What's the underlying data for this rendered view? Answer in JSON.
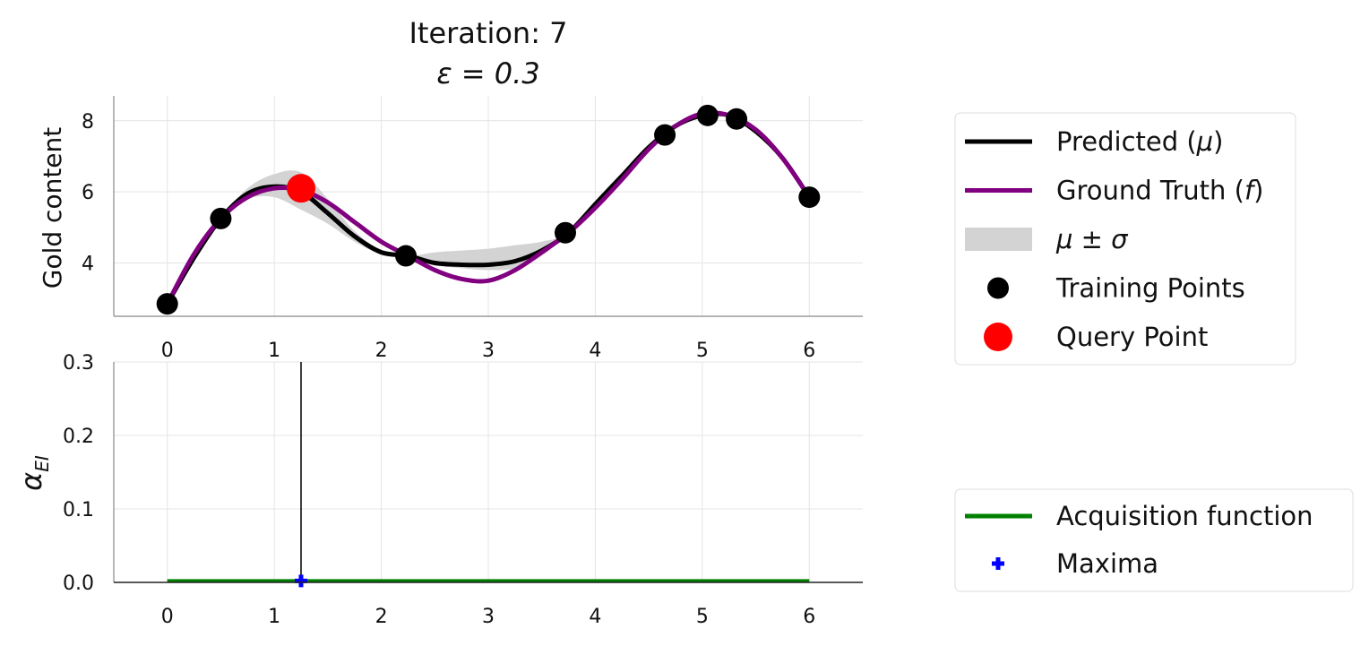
{
  "title": {
    "line1": "Iteration: 7",
    "line2": "ε = 0.3"
  },
  "chart_data": [
    {
      "type": "line",
      "ylabel": "Gold content",
      "xlim": [
        -0.5,
        6.5
      ],
      "ylim": [
        2.5,
        8.7
      ],
      "xticks": [
        "0",
        "1",
        "2",
        "3",
        "4",
        "5",
        "6"
      ],
      "yticks": [
        "4",
        "6",
        "8"
      ],
      "grid": true,
      "series": [
        {
          "name": "Predicted (μ)",
          "color": "#000000",
          "x": [
            0,
            0.25,
            0.5,
            0.75,
            1.0,
            1.25,
            1.5,
            1.75,
            2.0,
            2.25,
            2.5,
            2.75,
            3.0,
            3.25,
            3.5,
            3.75,
            4.0,
            4.25,
            4.5,
            4.75,
            5.0,
            5.25,
            5.5,
            5.75,
            6.0
          ],
          "y": [
            2.85,
            4.15,
            5.25,
            5.95,
            6.15,
            6.0,
            5.4,
            4.75,
            4.3,
            4.2,
            4.0,
            3.95,
            3.95,
            4.05,
            4.35,
            4.85,
            5.65,
            6.45,
            7.25,
            7.85,
            8.15,
            8.15,
            7.7,
            6.95,
            5.85
          ]
        },
        {
          "name": "Ground Truth (f)",
          "color": "#800080",
          "x": [
            0,
            0.25,
            0.5,
            0.75,
            1.0,
            1.25,
            1.5,
            1.75,
            2.0,
            2.25,
            2.5,
            2.75,
            3.0,
            3.25,
            3.5,
            3.75,
            4.0,
            4.25,
            4.5,
            4.75,
            5.0,
            5.25,
            5.5,
            5.75,
            6.0
          ],
          "y": [
            2.85,
            4.25,
            5.25,
            5.85,
            6.1,
            6.05,
            5.7,
            5.15,
            4.6,
            4.2,
            3.8,
            3.55,
            3.5,
            3.8,
            4.3,
            4.85,
            5.55,
            6.35,
            7.2,
            7.85,
            8.2,
            8.15,
            7.75,
            6.95,
            5.85
          ]
        }
      ],
      "band": {
        "name": "μ ± σ",
        "color": "#d3d3d3",
        "x": [
          0,
          0.25,
          0.5,
          0.75,
          1.0,
          1.25,
          1.5,
          1.75,
          2.0,
          2.25,
          2.5,
          2.75,
          3.0,
          3.25,
          3.5,
          3.75,
          4.0,
          4.25,
          4.5,
          4.75,
          5.0,
          5.25,
          5.5,
          5.75,
          6.0
        ],
        "lower": [
          2.85,
          4.12,
          5.25,
          5.8,
          5.85,
          5.5,
          5.1,
          4.6,
          4.25,
          4.2,
          3.95,
          3.85,
          3.8,
          3.85,
          4.2,
          4.85,
          5.6,
          6.4,
          7.2,
          7.85,
          8.15,
          8.1,
          7.65,
          6.9,
          5.85
        ],
        "upper": [
          2.85,
          4.2,
          5.25,
          6.1,
          6.5,
          6.55,
          5.8,
          4.9,
          4.35,
          4.2,
          4.3,
          4.35,
          4.4,
          4.5,
          4.6,
          4.85,
          5.75,
          6.55,
          7.3,
          7.85,
          8.2,
          8.2,
          7.75,
          7.0,
          5.85
        ]
      },
      "training_points": {
        "name": "Training Points",
        "color": "#000000",
        "x": [
          0,
          0.5,
          2.23,
          3.72,
          4.65,
          5.05,
          5.32,
          6.0
        ],
        "y": [
          2.85,
          5.25,
          4.2,
          4.85,
          7.6,
          8.15,
          8.05,
          5.85
        ]
      },
      "query_point": {
        "name": "Query Point",
        "color": "#ff0000",
        "x": [
          1.25
        ],
        "y": [
          6.1
        ]
      }
    },
    {
      "type": "line",
      "ylabel": "α_EI",
      "xlim": [
        -0.5,
        6.5
      ],
      "ylim": [
        0.0,
        0.3
      ],
      "xticks": [
        "0",
        "1",
        "2",
        "3",
        "4",
        "5",
        "6"
      ],
      "yticks": [
        "0.0",
        "0.1",
        "0.2",
        "0.3"
      ],
      "grid": true,
      "series": [
        {
          "name": "Acquisition function",
          "color": "#008000",
          "x": [
            0,
            6
          ],
          "y": [
            0.002,
            0.002
          ]
        }
      ],
      "vline": {
        "x": 1.25,
        "color": "#000000"
      },
      "maxima": {
        "name": "Maxima",
        "color": "#0000ff",
        "x": [
          1.25
        ],
        "y": [
          0.002
        ]
      }
    }
  ],
  "legend_top": {
    "items": [
      {
        "pre": "Predicted (",
        "sym": "μ",
        "post": ")",
        "kind": "line",
        "color": "#000000"
      },
      {
        "pre": "Ground Truth (",
        "sym": "f",
        "post": ")",
        "kind": "line",
        "color": "#800080"
      },
      {
        "pre": "",
        "sym": "μ ± σ",
        "post": "",
        "kind": "patch",
        "color": "#d3d3d3"
      },
      {
        "pre": "Training Points",
        "sym": "",
        "post": "",
        "kind": "dot",
        "color": "#000000"
      },
      {
        "pre": "Query Point",
        "sym": "",
        "post": "",
        "kind": "bigdot",
        "color": "#ff0000"
      }
    ]
  },
  "legend_bottom": {
    "items": [
      {
        "pre": "Acquisition function",
        "sym": "",
        "post": "",
        "kind": "line",
        "color": "#008000"
      },
      {
        "pre": "Maxima",
        "sym": "",
        "post": "",
        "kind": "plus",
        "color": "#0000ff"
      }
    ]
  },
  "ylabel_bottom": {
    "main": "α",
    "sub": "EI"
  }
}
